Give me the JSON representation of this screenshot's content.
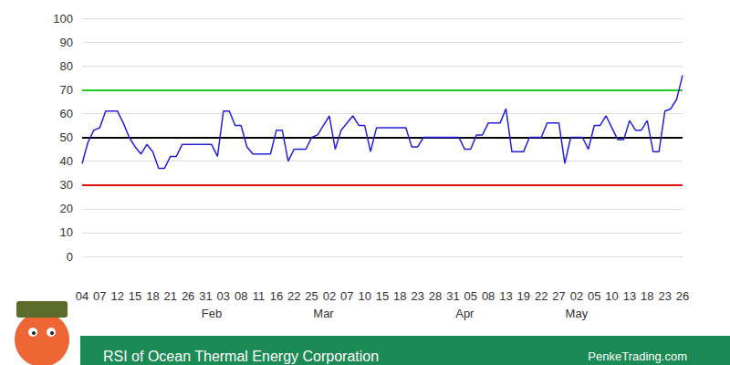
{
  "chart_data": {
    "type": "line",
    "title": "RSI of Ocean Thermal Energy Corporation",
    "source": "PenkeTrading.com",
    "categories": [
      "04",
      null,
      null,
      "07",
      null,
      null,
      "12",
      null,
      null,
      "15",
      null,
      null,
      "18",
      null,
      null,
      "21",
      null,
      null,
      "26",
      null,
      null,
      "31",
      null,
      null,
      "03",
      null,
      null,
      "08",
      null,
      null,
      "11",
      null,
      null,
      "16",
      null,
      null,
      "22",
      null,
      null,
      "25",
      null,
      null,
      "02",
      null,
      null,
      "07",
      null,
      null,
      "10",
      null,
      null,
      "15",
      null,
      null,
      "18",
      null,
      null,
      "23",
      null,
      null,
      "28",
      null,
      null,
      "31",
      null,
      null,
      "05",
      null,
      null,
      "08",
      null,
      null,
      "13",
      null,
      null,
      "19",
      null,
      null,
      "22",
      null,
      null,
      "27",
      null,
      null,
      "02",
      null,
      null,
      "05",
      null,
      null,
      "10",
      null,
      null,
      "13",
      null,
      null,
      "18",
      null,
      null,
      "23",
      null,
      null,
      "26"
    ],
    "month_labels": [
      null,
      null,
      null,
      null,
      null,
      null,
      null,
      null,
      null,
      null,
      null,
      null,
      null,
      null,
      null,
      null,
      null,
      null,
      null,
      null,
      null,
      null,
      "Feb",
      null,
      null,
      null,
      null,
      null,
      null,
      null,
      null,
      null,
      null,
      null,
      null,
      null,
      null,
      null,
      null,
      null,
      null,
      "Mar",
      null,
      null,
      null,
      null,
      null,
      null,
      null,
      null,
      null,
      null,
      null,
      null,
      null,
      null,
      null,
      null,
      null,
      null,
      null,
      null,
      null,
      null,
      null,
      "Apr",
      null,
      null,
      null,
      null,
      null,
      null,
      null,
      null,
      null,
      null,
      null,
      null,
      null,
      null,
      null,
      null,
      null,
      null,
      "May",
      null,
      null,
      null,
      null,
      null,
      null,
      null,
      null,
      null,
      null,
      null,
      null,
      null,
      null,
      null,
      null,
      null,
      null
    ],
    "values": [
      39,
      48,
      53,
      54,
      61,
      61,
      61,
      56,
      50,
      46,
      43,
      47,
      44,
      37,
      37,
      42,
      42,
      47,
      47,
      47,
      47,
      47,
      47,
      42,
      61,
      61,
      55,
      55,
      46,
      43,
      43,
      43,
      43,
      53,
      53,
      40,
      45,
      45,
      45,
      50,
      51,
      55,
      59,
      45,
      53,
      56,
      59,
      55,
      55,
      44,
      54,
      54,
      54,
      54,
      54,
      54,
      46,
      46,
      50,
      50,
      50,
      50,
      50,
      50,
      50,
      45,
      45,
      51,
      51,
      56,
      56,
      56,
      62,
      44,
      44,
      44,
      50,
      50,
      50,
      56,
      56,
      56,
      39,
      50,
      50,
      50,
      45,
      55,
      55,
      59,
      54,
      49,
      49,
      57,
      53,
      53,
      57,
      44,
      44,
      61,
      62,
      66,
      76
    ],
    "color": "#2222dd",
    "ylim": [
      0,
      100
    ],
    "yticks": [
      0,
      10,
      20,
      30,
      40,
      50,
      60,
      70,
      80,
      90,
      100
    ],
    "grid": true,
    "reference_lines": [
      {
        "value": 70,
        "color": "#22cc22"
      },
      {
        "value": 50,
        "color": "#000000"
      },
      {
        "value": 30,
        "color": "#dd1111"
      }
    ]
  }
}
